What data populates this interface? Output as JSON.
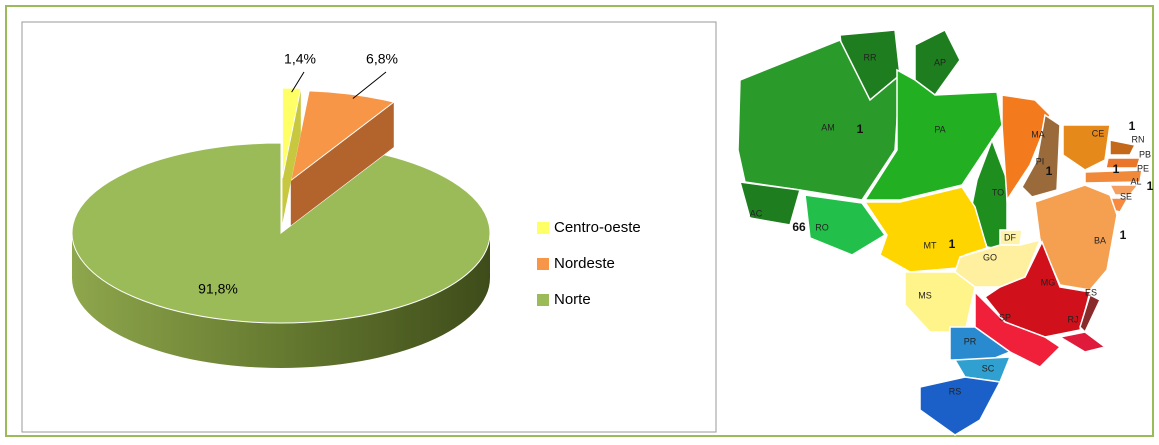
{
  "chart_data": {
    "type": "pie",
    "categories": [
      "Centro-oeste",
      "Nordeste",
      "Norte"
    ],
    "values": [
      1.4,
      6.8,
      91.8
    ],
    "value_labels": [
      "1,4%",
      "6,8%",
      "91,8%"
    ],
    "colors": [
      "#ffff66",
      "#f79646",
      "#9bbb59"
    ],
    "legend": "right"
  },
  "map": {
    "states": [
      {
        "code": "RR",
        "color": "#1e7d1e"
      },
      {
        "code": "AP",
        "color": "#1e7d1e"
      },
      {
        "code": "AM",
        "color": "#2a9a2a",
        "count": "1"
      },
      {
        "code": "AC",
        "color": "#1e7d1e"
      },
      {
        "code": "RO",
        "color": "#22c04a",
        "count": "66"
      },
      {
        "code": "PA",
        "color": "#22b022"
      },
      {
        "code": "TO",
        "color": "#1e8f1e"
      },
      {
        "code": "MA",
        "color": "#f47a1e"
      },
      {
        "code": "PI",
        "color": "#9a6a3a",
        "count": "1"
      },
      {
        "code": "CE",
        "color": "#e58a1a"
      },
      {
        "code": "RN",
        "color": "#c4681a",
        "count": "1"
      },
      {
        "code": "PB",
        "color": "#e9762a"
      },
      {
        "code": "PE",
        "color": "#f08a3a",
        "count": "1"
      },
      {
        "code": "AL",
        "color": "#f3a060",
        "count": "1"
      },
      {
        "code": "SE",
        "color": "#f58a40"
      },
      {
        "code": "BA",
        "color": "#f5a050",
        "count": "1"
      },
      {
        "code": "MT",
        "color": "#ffd500",
        "count": "1"
      },
      {
        "code": "DF",
        "color": "#fff3a8"
      },
      {
        "code": "GO",
        "color": "#fff0a0"
      },
      {
        "code": "MS",
        "color": "#fff48a"
      },
      {
        "code": "MG",
        "color": "#d0101a"
      },
      {
        "code": "ES",
        "color": "#8a2a2a"
      },
      {
        "code": "RJ",
        "color": "#e01a3a"
      },
      {
        "code": "SP",
        "color": "#f0203a"
      },
      {
        "code": "PR",
        "color": "#2a8ad0"
      },
      {
        "code": "SC",
        "color": "#30a0d0"
      },
      {
        "code": "RS",
        "color": "#1a60c8"
      }
    ]
  }
}
